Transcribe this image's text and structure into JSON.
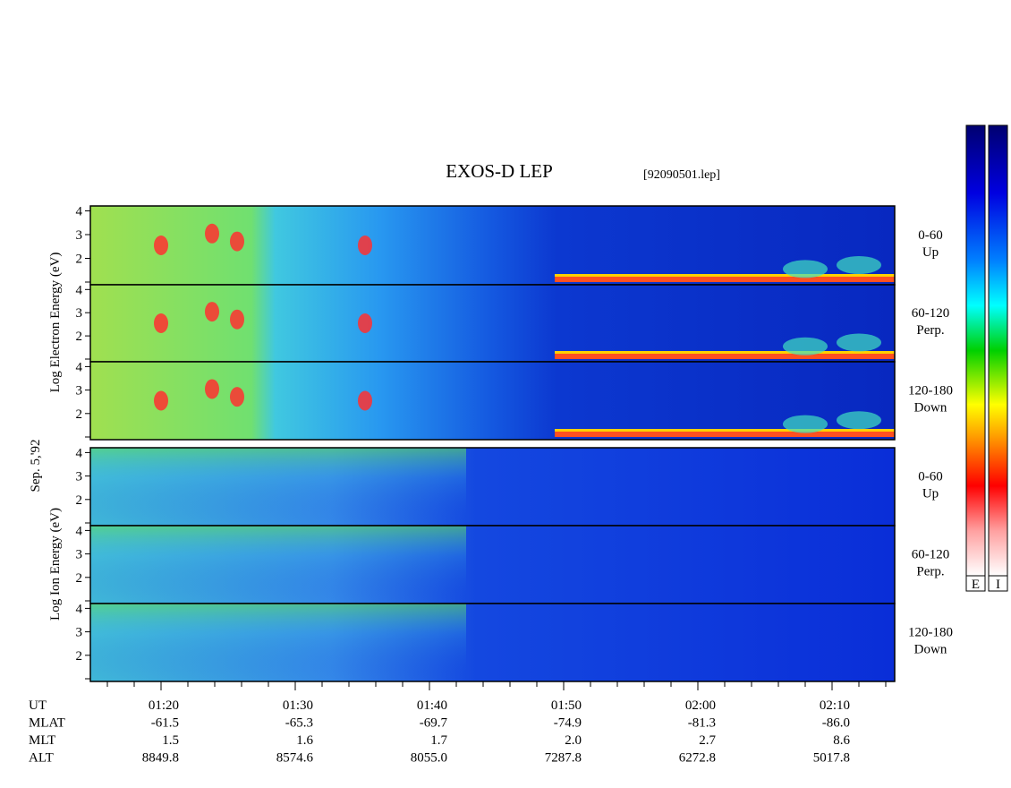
{
  "title": "EXOS-D LEP",
  "file": "[92090501.lep]",
  "electron_axis_label": "Log Electron Energy (eV)",
  "date": "Sep. 5,'92",
  "ion_axis_label": "Log Ion Energy (eV)",
  "panels": [
    {
      "species": "electron",
      "label": [
        "0-60",
        "Up"
      ],
      "yticks": [
        "2",
        "3",
        "4"
      ]
    },
    {
      "species": "electron",
      "label": [
        "60-120",
        "Perp."
      ],
      "yticks": [
        "2",
        "3",
        "4"
      ]
    },
    {
      "species": "electron",
      "label": [
        "120-180",
        "Down"
      ],
      "yticks": [
        "2",
        "3",
        "4"
      ]
    },
    {
      "species": "ion",
      "label": [
        "0-60",
        "Up"
      ],
      "yticks": [
        "2",
        "3",
        "4"
      ]
    },
    {
      "species": "ion",
      "label": [
        "60-120",
        "Perp."
      ],
      "yticks": [
        "2",
        "3",
        "4"
      ]
    },
    {
      "species": "ion",
      "label": [
        "120-180",
        "Down"
      ],
      "yticks": [
        "2",
        "3",
        "4"
      ]
    }
  ],
  "colorbars": [
    "E",
    "I"
  ],
  "ephemeris": {
    "row_labels": [
      "UT",
      "MLAT",
      "MLT",
      "ALT"
    ],
    "rows": [
      [
        "01:20",
        "01:30",
        "01:40",
        "01:50",
        "02:00",
        "02:10"
      ],
      [
        "-61.5",
        "-65.3",
        "-69.7",
        "-74.9",
        "-81.3",
        "-86.0"
      ],
      [
        "1.5",
        "1.6",
        "1.7",
        "2.0",
        "2.7",
        "8.6"
      ],
      [
        "8849.8",
        "8574.6",
        "8055.0",
        "7287.8",
        "6272.8",
        "5017.8"
      ]
    ]
  }
}
